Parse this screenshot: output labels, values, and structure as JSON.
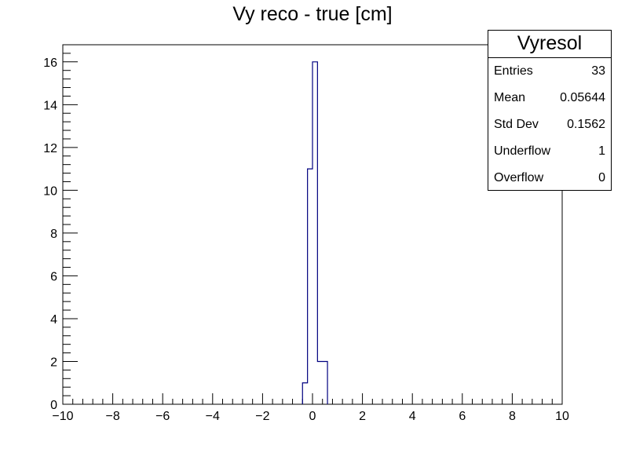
{
  "chart_data": {
    "type": "histogram",
    "title": "Vy reco - true [cm]",
    "xlim": [
      -10,
      10
    ],
    "ylim": [
      0,
      16.8
    ],
    "x_ticks": [
      -10,
      -8,
      -6,
      -4,
      -2,
      0,
      2,
      4,
      6,
      8,
      10
    ],
    "x_tick_labels": [
      "−10",
      "−8",
      "−6",
      "−4",
      "−2",
      "0",
      "2",
      "4",
      "6",
      "8",
      "10"
    ],
    "y_ticks": [
      0,
      2,
      4,
      6,
      8,
      10,
      12,
      14,
      16
    ],
    "y_tick_labels": [
      "0",
      "2",
      "4",
      "6",
      "8",
      "10",
      "12",
      "14",
      "16"
    ],
    "bin_width": 0.2,
    "bins": [
      {
        "x0": -0.4,
        "x1": -0.2,
        "count": 1
      },
      {
        "x0": -0.2,
        "x1": 0.0,
        "count": 11
      },
      {
        "x0": 0.0,
        "x1": 0.2,
        "count": 16
      },
      {
        "x0": 0.2,
        "x1": 0.4,
        "count": 2
      },
      {
        "x0": 0.4,
        "x1": 0.6,
        "count": 2
      }
    ],
    "line_color": "#000080",
    "legend": {
      "name": "Vyresol",
      "rows": [
        {
          "label": "Entries",
          "value": "33"
        },
        {
          "label": "Mean",
          "value": "0.05644"
        },
        {
          "label": "Std Dev",
          "value": "0.1562"
        },
        {
          "label": "Underflow",
          "value": "1"
        },
        {
          "label": "Overflow",
          "value": "0"
        }
      ]
    }
  }
}
